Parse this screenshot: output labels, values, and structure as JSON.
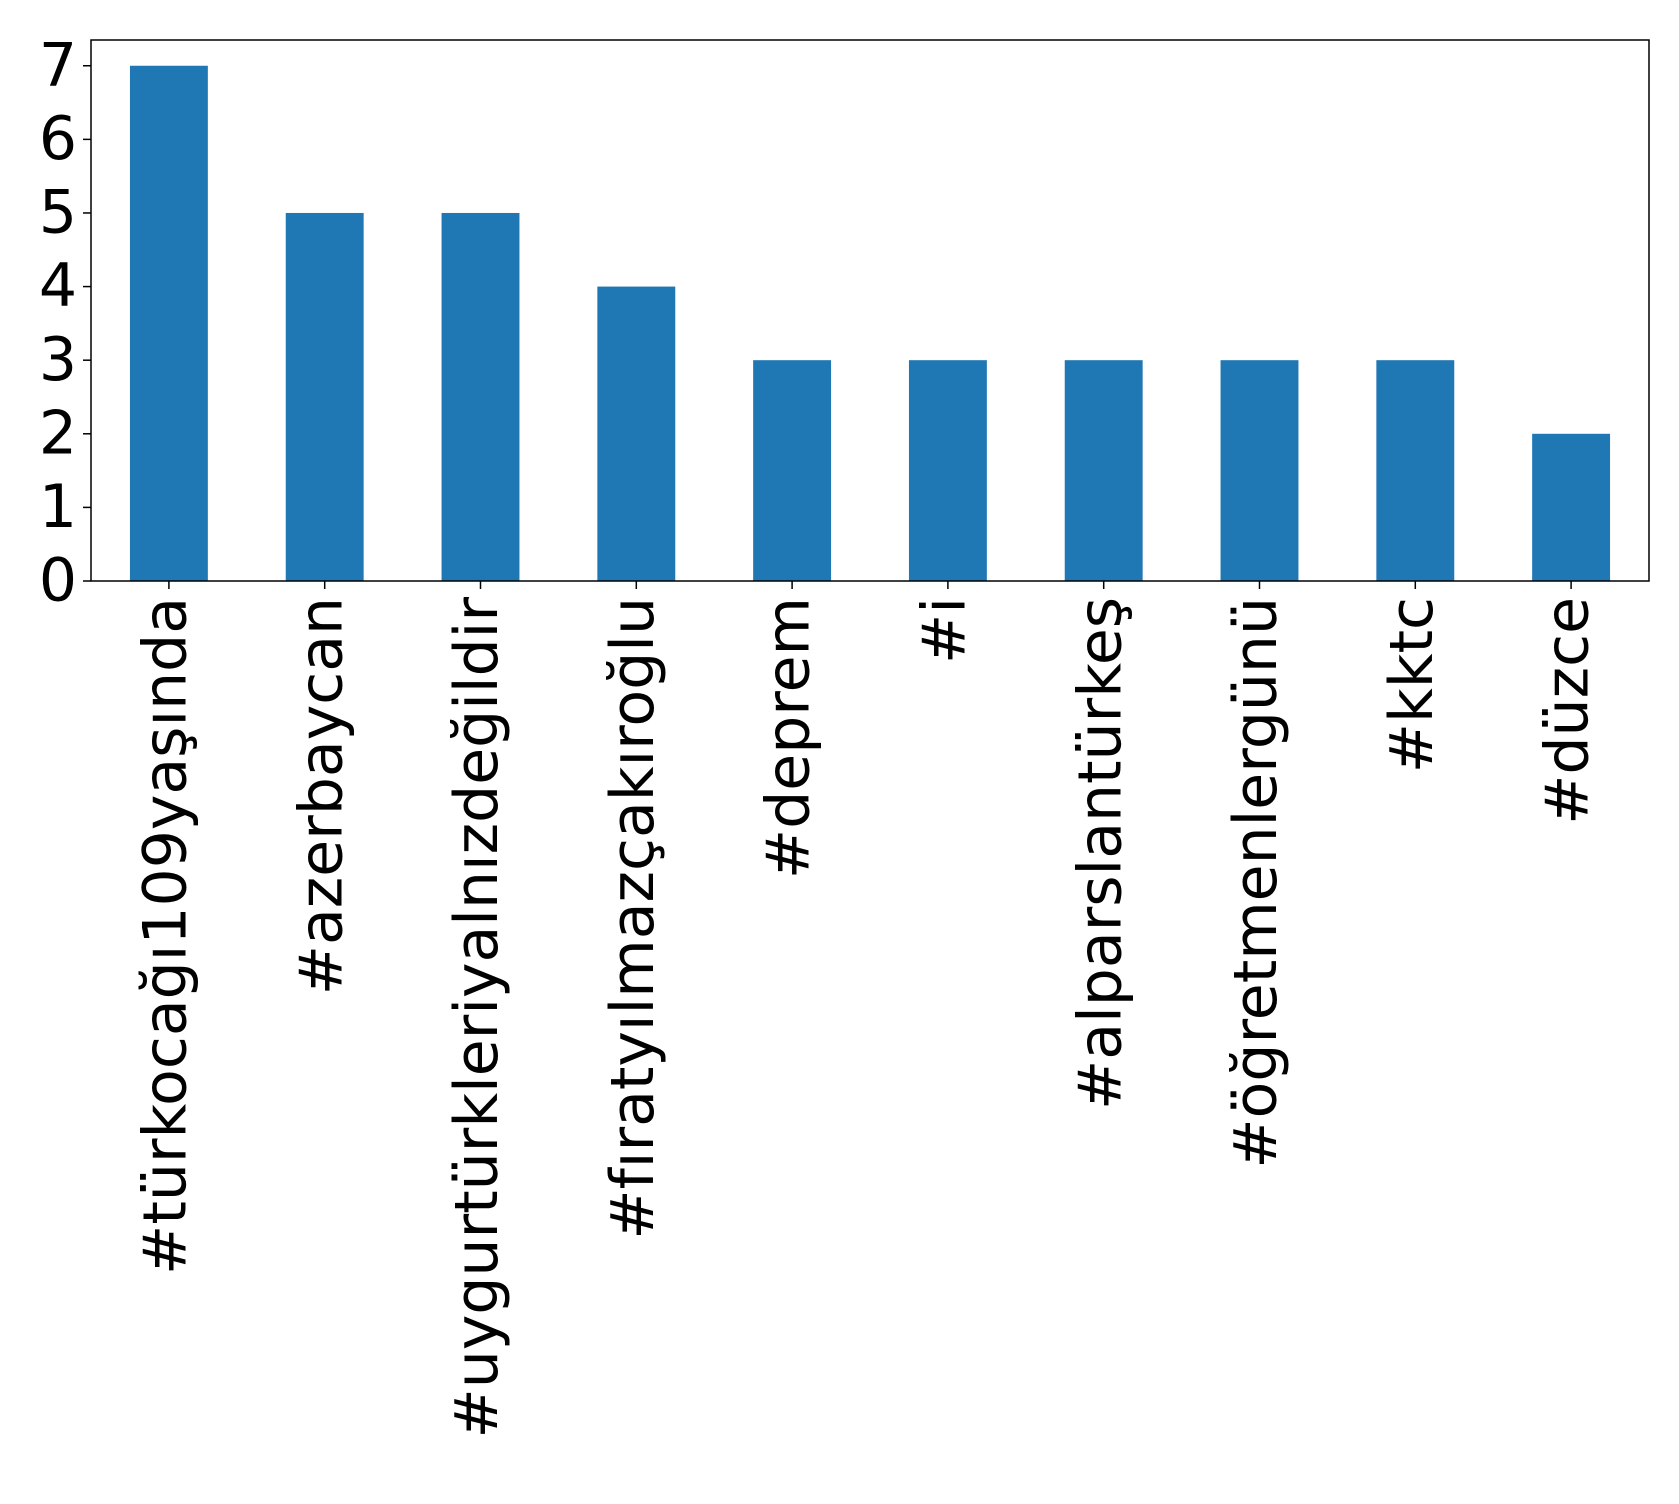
{
  "chart_data": {
    "type": "bar",
    "categories": [
      "#türkocağı109yaşında",
      "#azerbaycan",
      "#uygurtürkleriyalnızdeğildir",
      "#fıratyılmazçakıroğlu",
      "#deprem",
      "#i",
      "#alparslantürkeş",
      "#öğretmenlergünü",
      "#kktc",
      "#düzce"
    ],
    "values": [
      7,
      5,
      5,
      4,
      3,
      3,
      3,
      3,
      3,
      2
    ],
    "color": "#1f77b4",
    "ylim": [
      0,
      7.35
    ],
    "yticks": [
      0,
      1,
      2,
      3,
      4,
      5,
      6,
      7
    ]
  }
}
